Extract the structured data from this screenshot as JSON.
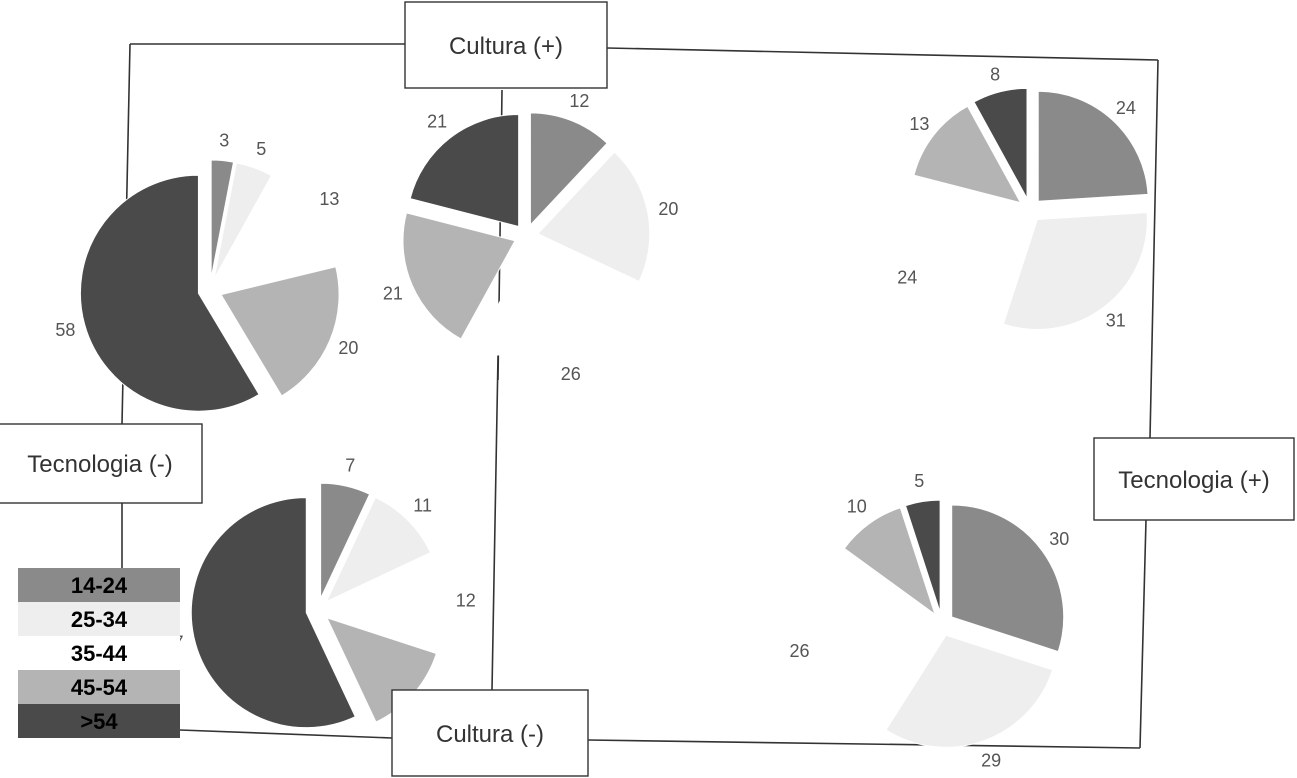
{
  "axes": {
    "top": "Cultura (+)",
    "bottom": "Cultura (-)",
    "left": "Tecnologia (-)",
    "right": "Tecnologia (+)"
  },
  "legend": {
    "placement": "bottom-left",
    "items": [
      {
        "label": "14-24",
        "color": "#8a8a8a"
      },
      {
        "label": "25-34",
        "color": "#eeeeee"
      },
      {
        "label": "35-44",
        "color": "#ffffff"
      },
      {
        "label": "45-54",
        "color": "#b4b4b4"
      },
      {
        "label": ">54",
        "color": "#4a4a4a"
      }
    ]
  },
  "chart_data": {
    "type": "pie",
    "categories": [
      "14-24",
      "25-34",
      "35-44",
      "45-54",
      ">54"
    ],
    "pies": [
      {
        "quadrant": "top-left",
        "values": [
          3,
          5,
          13,
          20,
          58
        ]
      },
      {
        "quadrant": "top-center",
        "values": [
          12,
          20,
          26,
          21,
          21
        ]
      },
      {
        "quadrant": "top-right",
        "values": [
          24,
          31,
          24,
          13,
          8
        ]
      },
      {
        "quadrant": "bottom-left",
        "values": [
          7,
          11,
          12,
          13,
          57
        ]
      },
      {
        "quadrant": "bottom-right",
        "values": [
          30,
          29,
          26,
          10,
          5
        ]
      }
    ]
  }
}
